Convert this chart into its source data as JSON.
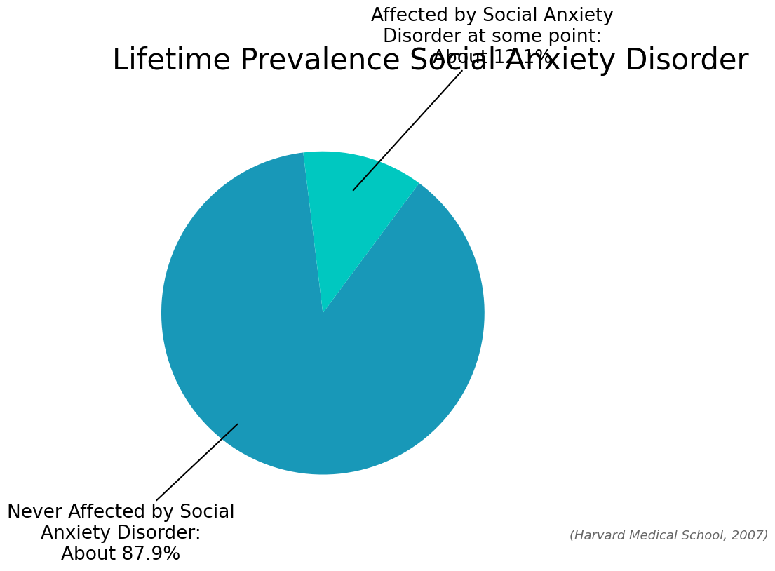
{
  "title": "Lifetime Prevalence Social Anxiety Disorder",
  "title_fontsize": 30,
  "slices": [
    87.9,
    12.1
  ],
  "colors": [
    "#1898b8",
    "#00c8c0"
  ],
  "labels": [
    "Never Affected by Social\nAnxiety Disorder:\nAbout 87.9%",
    "Affected by Social Anxiety\nDisorder at some point:\nAbout 12.1%"
  ],
  "citation": "(Harvard Medical School, 2007)",
  "citation_fontsize": 13,
  "background_color": "#ffffff",
  "label_fontsize": 19,
  "startangle": 97
}
